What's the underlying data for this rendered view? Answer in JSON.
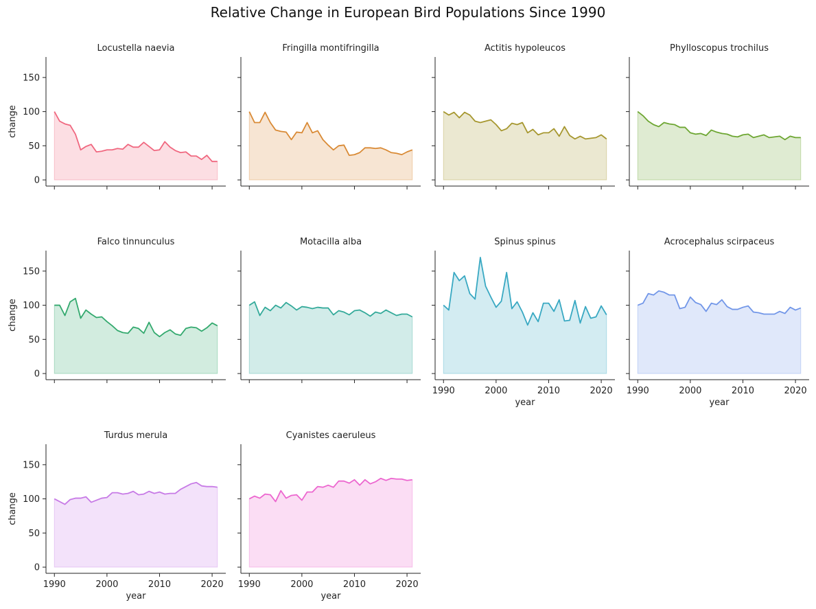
{
  "chart_data": {
    "type": "area",
    "title": "Relative Change in European Bird Populations Since 1990",
    "xlabel": "year",
    "ylabel": "change",
    "x": [
      1990,
      1991,
      1992,
      1993,
      1994,
      1995,
      1996,
      1997,
      1998,
      1999,
      2000,
      2001,
      2002,
      2003,
      2004,
      2005,
      2006,
      2007,
      2008,
      2009,
      2010,
      2011,
      2012,
      2013,
      2014,
      2015,
      2016,
      2017,
      2018,
      2019,
      2020,
      2021
    ],
    "xlim": [
      1988.4,
      2022.6
    ],
    "ylim": [
      -9,
      180
    ],
    "xticks": [
      "1990",
      "2000",
      "2010",
      "2020"
    ],
    "yticks": [
      "0",
      "50",
      "100",
      "150"
    ],
    "panels": [
      {
        "name": "Locustella naevia",
        "color": "#f0677f",
        "values": [
          100,
          86,
          82,
          80,
          67,
          44,
          49,
          52,
          41,
          42,
          44,
          44,
          46,
          45,
          52,
          48,
          48,
          55,
          49,
          43,
          44,
          56,
          48,
          43,
          40,
          41,
          35,
          35,
          30,
          36,
          27,
          27
        ]
      },
      {
        "name": "Fringilla montifringilla",
        "color": "#d98a35",
        "values": [
          100,
          84,
          84,
          99,
          84,
          73,
          71,
          70,
          59,
          70,
          69,
          84,
          69,
          72,
          59,
          51,
          44,
          50,
          51,
          36,
          37,
          40,
          47,
          47,
          46,
          47,
          44,
          40,
          39,
          37,
          41,
          44
        ]
      },
      {
        "name": "Actitis hypoleucos",
        "color": "#a6972f",
        "values": [
          100,
          95,
          99,
          91,
          99,
          95,
          86,
          84,
          86,
          88,
          81,
          72,
          75,
          83,
          81,
          84,
          69,
          74,
          66,
          69,
          69,
          75,
          64,
          78,
          65,
          60,
          64,
          60,
          61,
          62,
          66,
          60
        ]
      },
      {
        "name": "Phylloscopus trochilus",
        "color": "#6da632",
        "values": [
          100,
          94,
          86,
          81,
          78,
          84,
          82,
          81,
          77,
          77,
          69,
          67,
          68,
          65,
          73,
          70,
          68,
          67,
          64,
          63,
          66,
          67,
          62,
          64,
          66,
          62,
          63,
          64,
          59,
          64,
          62,
          62
        ]
      },
      {
        "name": "Falco tinnunculus",
        "color": "#33a96e",
        "values": [
          100,
          100,
          85,
          105,
          110,
          81,
          93,
          87,
          82,
          83,
          76,
          70,
          63,
          60,
          59,
          68,
          66,
          59,
          75,
          60,
          54,
          60,
          64,
          58,
          56,
          66,
          68,
          67,
          62,
          67,
          74,
          70
        ]
      },
      {
        "name": "Motacilla alba",
        "color": "#34aa9a",
        "values": [
          100,
          105,
          85,
          97,
          92,
          100,
          96,
          104,
          99,
          93,
          98,
          97,
          95,
          97,
          96,
          96,
          86,
          92,
          90,
          86,
          92,
          93,
          89,
          84,
          90,
          88,
          93,
          89,
          85,
          87,
          87,
          83
        ]
      },
      {
        "name": "Spinus spinus",
        "color": "#38a8c2",
        "values": [
          100,
          93,
          148,
          136,
          143,
          117,
          109,
          170,
          128,
          112,
          97,
          106,
          148,
          95,
          105,
          90,
          71,
          89,
          76,
          103,
          103,
          91,
          108,
          77,
          78,
          107,
          74,
          98,
          81,
          83,
          99,
          86
        ]
      },
      {
        "name": "Acrocephalus scirpaceus",
        "color": "#7196e8",
        "values": [
          100,
          103,
          117,
          115,
          121,
          119,
          115,
          115,
          95,
          97,
          112,
          104,
          101,
          91,
          103,
          101,
          108,
          98,
          94,
          94,
          97,
          99,
          90,
          89,
          87,
          87,
          87,
          91,
          88,
          97,
          93,
          96
        ]
      },
      {
        "name": "Turdus merula",
        "color": "#c77ae6",
        "values": [
          100,
          96,
          92,
          99,
          101,
          101,
          103,
          95,
          98,
          101,
          102,
          109,
          109,
          107,
          108,
          111,
          106,
          107,
          111,
          108,
          110,
          107,
          108,
          108,
          114,
          118,
          122,
          124,
          119,
          118,
          118,
          117
        ]
      },
      {
        "name": "Cyanistes caeruleus",
        "color": "#ec66cf",
        "values": [
          100,
          104,
          101,
          107,
          106,
          96,
          112,
          101,
          105,
          106,
          98,
          110,
          110,
          118,
          117,
          120,
          117,
          126,
          126,
          123,
          128,
          120,
          128,
          122,
          125,
          130,
          127,
          130,
          129,
          129,
          127,
          128
        ]
      }
    ]
  }
}
